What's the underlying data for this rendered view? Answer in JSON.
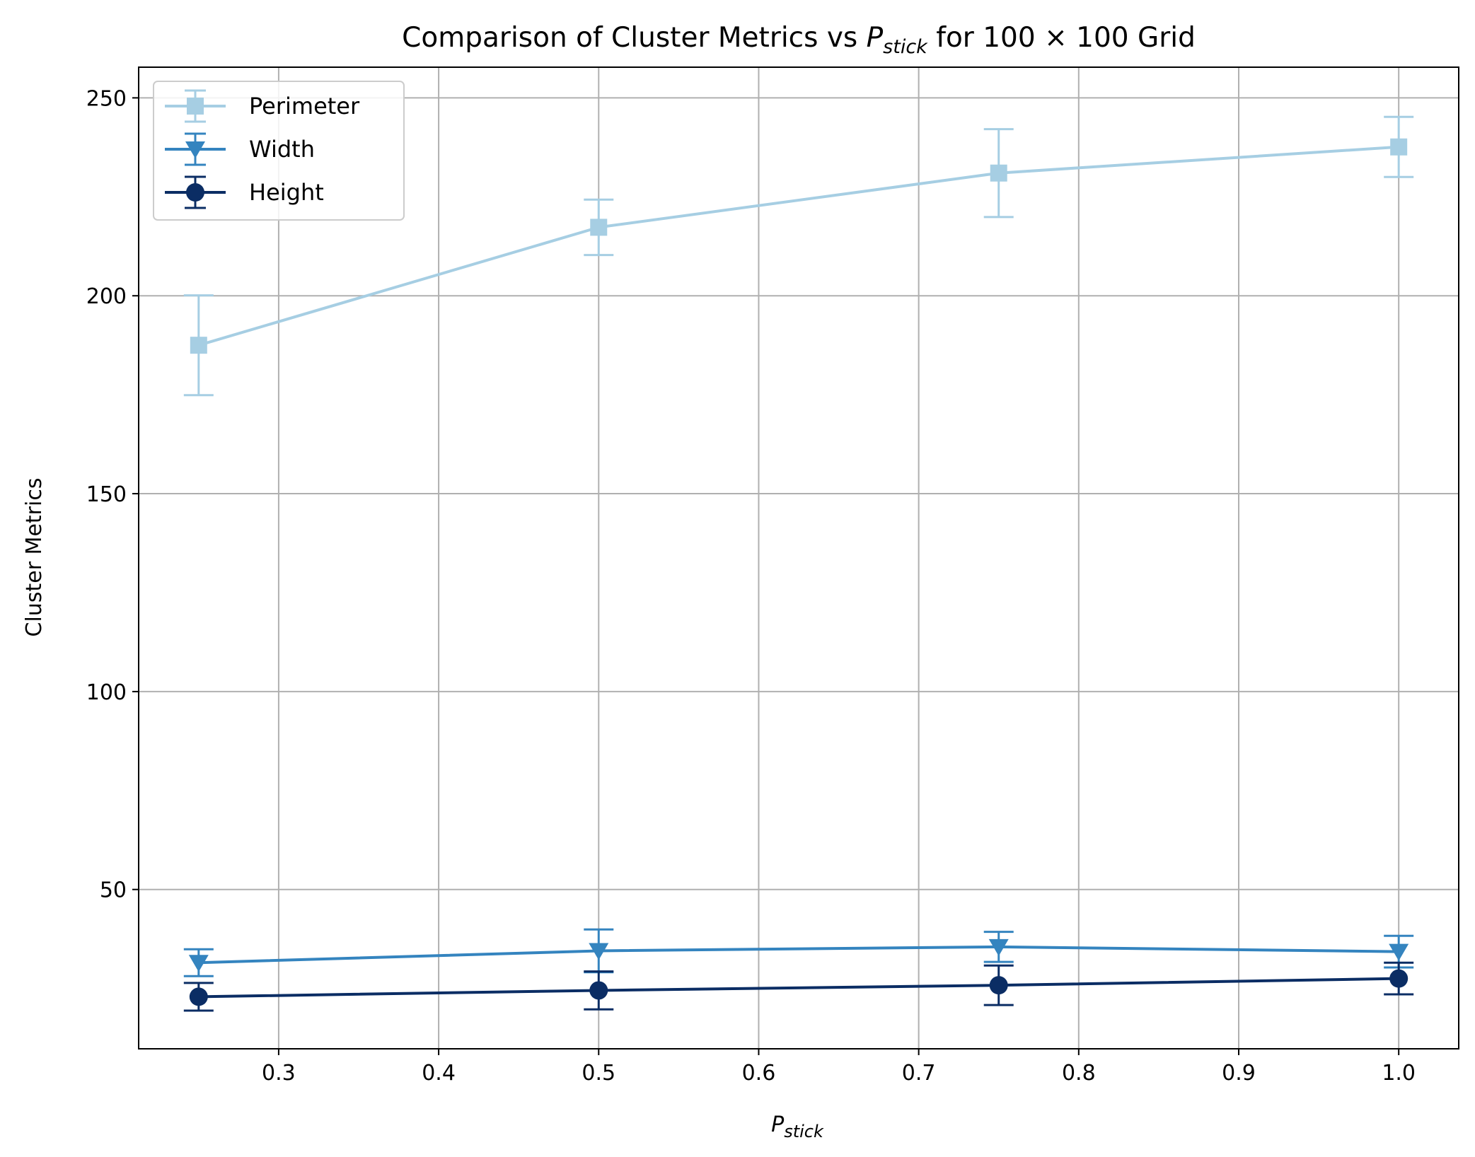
{
  "chart_data": {
    "type": "line",
    "title": {
      "prefix": "Comparison of Cluster Metrics vs ",
      "symbol": "P",
      "subscript": "stick",
      "suffix": " for 100 × 100 Grid"
    },
    "xlabel": {
      "symbol": "P",
      "subscript": "stick"
    },
    "ylabel": "Cluster Metrics",
    "xlim": [
      0.2125,
      1.0375
    ],
    "ylim": [
      9.75,
      257.75
    ],
    "xticks": [
      0.3,
      0.4,
      0.5,
      0.6,
      0.7,
      0.8,
      0.9,
      1.0
    ],
    "xtick_labels": [
      "0.3",
      "0.4",
      "0.5",
      "0.6",
      "0.7",
      "0.8",
      "0.9",
      "1.0"
    ],
    "yticks": [
      50,
      100,
      150,
      200,
      250
    ],
    "ytick_labels": [
      "50",
      "100",
      "150",
      "200",
      "250"
    ],
    "grid": true,
    "legend_position": "top-left",
    "x": [
      0.25,
      0.5,
      0.75,
      1.0
    ],
    "series": [
      {
        "name": "Perimeter",
        "marker": "square",
        "color": "#a6cee3",
        "values": [
          187.5,
          217.3,
          231.0,
          237.6
        ],
        "errors": [
          12.6,
          7.0,
          11.1,
          7.6
        ]
      },
      {
        "name": "Width",
        "marker": "triangle-down",
        "color": "#3484bf",
        "values": [
          31.5,
          34.5,
          35.5,
          34.3
        ],
        "errors": [
          3.4,
          5.4,
          3.8,
          4.0
        ]
      },
      {
        "name": "Height",
        "marker": "circle",
        "color": "#0b2d64",
        "values": [
          22.9,
          24.5,
          25.8,
          27.5
        ],
        "errors": [
          3.5,
          4.8,
          5.0,
          4.0
        ]
      }
    ]
  }
}
